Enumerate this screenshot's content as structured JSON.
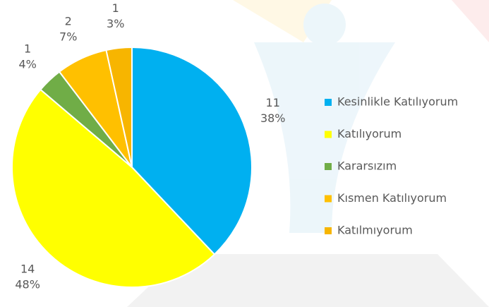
{
  "chart_data": {
    "type": "pie",
    "categories": [
      "Kesinlikle Katılıyorum",
      "Katılıyorum",
      "Kararsızım",
      "Kısmen Katılıyorum",
      "Katılmıyorum"
    ],
    "values": [
      11,
      14,
      1,
      2,
      1
    ],
    "percent_labels": [
      "38%",
      "48%",
      "4%",
      "7%",
      "3%"
    ],
    "colors": [
      "#00b0f0",
      "#ffff00",
      "#70ad47",
      "#ffc000",
      "#f7b500"
    ],
    "legend": "right"
  }
}
